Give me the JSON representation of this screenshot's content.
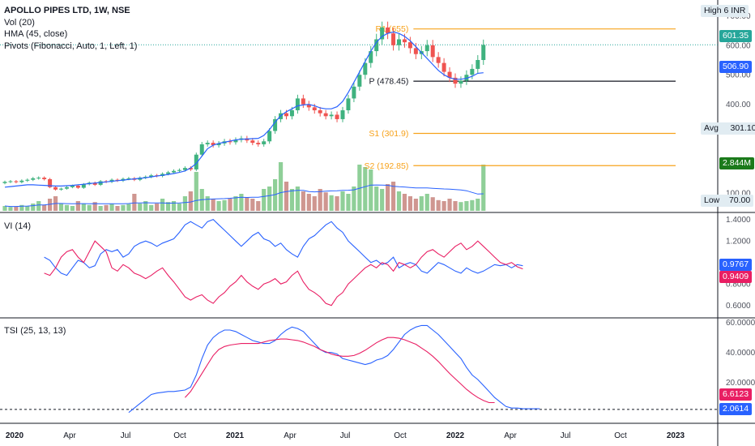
{
  "legend": {
    "symbol": "APOLLO PIPES LTD, 1W, NSE",
    "vol": "Vol (20)",
    "hma": "HMA (45, close)",
    "pivots": "Pivots (Fibonacci, Auto, 1, Left, 1)"
  },
  "colors": {
    "up": "#26a69a",
    "up_candle": "#3fb27f",
    "down": "#ef5350",
    "vol_up": "#8fcf98",
    "vol_down": "#cf9690",
    "hma": "#2962ff",
    "pivot": "#f7a21b",
    "p_line": "#131722",
    "vi_plus": "#2962ff",
    "vi_minus": "#e91e63",
    "tsi": "#2962ff",
    "tsi_signal": "#e91e63"
  },
  "chart_data": [
    {
      "type": "candlestick",
      "title": "APOLLO PIPES LTD, 1W, NSE",
      "ylim": [
        40,
        720
      ],
      "y_ticks": [
        100,
        400,
        500,
        600,
        700
      ],
      "x_ticks": [
        "2020",
        "Apr",
        "Jul",
        "Oct",
        "2021",
        "Apr",
        "Jul",
        "Oct",
        "2022",
        "Apr",
        "Jul",
        "Oct",
        "2023"
      ],
      "last_close": 601.35,
      "pivots": [
        {
          "name": "R1",
          "value": 655,
          "label": "R1 (655)"
        },
        {
          "name": "P",
          "value": 478.45,
          "label": "P (478.45)"
        },
        {
          "name": "S1",
          "value": 301.9,
          "label": "S1 (301.9)"
        },
        {
          "name": "S2",
          "value": 192.85,
          "label": "S2 (192.85)"
        }
      ],
      "price_badges": {
        "high_label": "High",
        "high_value": "6",
        "currency": "INR",
        "last": "601.35",
        "hma": "506.90",
        "avg_label": "Avg",
        "avg_value": "301.10",
        "volume": "2.844M",
        "low_label": "Low",
        "low_value": "70.00"
      },
      "closes": [
        138,
        140,
        137,
        142,
        145,
        150,
        152,
        147,
        120,
        112,
        115,
        120,
        125,
        118,
        130,
        135,
        128,
        140,
        138,
        145,
        142,
        148,
        150,
        145,
        152,
        155,
        160,
        158,
        165,
        170,
        175,
        178,
        185,
        180,
        230,
        265,
        270,
        262,
        268,
        275,
        272,
        280,
        285,
        278,
        270,
        265,
        275,
        310,
        350,
        370,
        360,
        380,
        420,
        400,
        390,
        380,
        370,
        360,
        365,
        350,
        380,
        420,
        460,
        500,
        540,
        580,
        620,
        660,
        640,
        600,
        620,
        610,
        590,
        570,
        580,
        600,
        560,
        540,
        510,
        490,
        470,
        480,
        500,
        520,
        550,
        601
      ],
      "volume_factor": [
        0.1,
        0.08,
        0.09,
        0.12,
        0.1,
        0.15,
        0.2,
        0.12,
        0.25,
        0.3,
        0.15,
        0.12,
        0.1,
        0.2,
        0.15,
        0.12,
        0.18,
        0.1,
        0.12,
        0.15,
        0.1,
        0.12,
        0.14,
        0.35,
        0.15,
        0.2,
        0.12,
        0.15,
        0.25,
        0.18,
        0.2,
        0.15,
        0.3,
        0.4,
        0.8,
        0.45,
        0.3,
        0.25,
        0.2,
        0.22,
        0.25,
        0.3,
        0.35,
        0.28,
        0.25,
        0.2,
        0.45,
        0.5,
        0.65,
        1.0,
        0.6,
        0.45,
        0.5,
        0.4,
        0.35,
        0.3,
        0.45,
        0.38,
        0.32,
        0.3,
        0.4,
        0.35,
        0.5,
        0.95,
        0.9,
        0.85,
        0.5,
        0.45,
        0.55,
        0.6,
        0.4,
        0.35,
        0.3,
        0.25,
        0.3,
        0.35,
        0.28,
        0.22,
        0.2,
        0.25,
        0.2,
        0.18,
        0.2,
        0.22,
        0.25,
        0.95
      ],
      "hma": [
        120,
        122,
        124,
        126,
        128,
        128,
        127,
        126,
        125,
        124,
        124,
        125,
        126,
        128,
        130,
        132,
        134,
        136,
        138,
        140,
        142,
        144,
        146,
        148,
        150,
        152,
        155,
        158,
        160,
        163,
        166,
        170,
        175,
        185,
        200,
        225,
        250,
        262,
        268,
        272,
        276,
        280,
        282,
        283,
        284,
        285,
        295,
        315,
        340,
        362,
        375,
        385,
        395,
        398,
        400,
        395,
        388,
        385,
        385,
        392,
        410,
        440,
        475,
        510,
        545,
        580,
        610,
        630,
        640,
        645,
        640,
        630,
        615,
        595,
        575,
        555,
        535,
        515,
        500,
        490,
        485,
        485,
        488,
        495,
        505,
        507
      ]
    },
    {
      "type": "line",
      "title": "VI (14)",
      "ylim": [
        0.5,
        1.45
      ],
      "y_ticks": [
        0.6,
        0.8,
        1.2,
        1.4
      ],
      "last_values": {
        "vi_plus": "0.9767",
        "vi_minus": "0.9409"
      },
      "series": [
        {
          "name": "VI+",
          "values": [
            1.05,
            1.02,
            0.95,
            0.9,
            0.88,
            0.95,
            1.02,
            1.0,
            0.95,
            0.97,
            1.08,
            1.12,
            1.1,
            1.12,
            1.05,
            1.08,
            1.15,
            1.18,
            1.2,
            1.18,
            1.15,
            1.18,
            1.2,
            1.22,
            1.28,
            1.35,
            1.38,
            1.35,
            1.32,
            1.38,
            1.4,
            1.35,
            1.3,
            1.25,
            1.2,
            1.15,
            1.2,
            1.25,
            1.28,
            1.22,
            1.2,
            1.15,
            1.18,
            1.12,
            1.08,
            1.05,
            1.15,
            1.22,
            1.25,
            1.3,
            1.35,
            1.38,
            1.32,
            1.28,
            1.2,
            1.15,
            1.1,
            1.05,
            1.0,
            1.02,
            0.98,
            1.0,
            1.05,
            0.95,
            0.98,
            1.0,
            0.98,
            0.92,
            0.9,
            0.95,
            1.0,
            0.98,
            0.95,
            0.92,
            0.9,
            0.95,
            0.92,
            0.9,
            0.92,
            0.95,
            0.98,
            0.97,
            0.98,
            0.95,
            0.98,
            0.97
          ]
        },
        {
          "name": "VI-",
          "values": [
            0.9,
            0.88,
            0.95,
            1.05,
            1.1,
            1.12,
            1.05,
            1.0,
            1.1,
            1.2,
            1.15,
            1.1,
            0.95,
            0.92,
            0.98,
            0.95,
            0.9,
            0.88,
            0.85,
            0.88,
            0.92,
            0.95,
            0.88,
            0.82,
            0.75,
            0.68,
            0.65,
            0.68,
            0.7,
            0.65,
            0.62,
            0.68,
            0.72,
            0.78,
            0.82,
            0.88,
            0.82,
            0.78,
            0.75,
            0.8,
            0.82,
            0.85,
            0.8,
            0.82,
            0.88,
            0.92,
            0.82,
            0.75,
            0.72,
            0.68,
            0.62,
            0.6,
            0.68,
            0.72,
            0.8,
            0.85,
            0.9,
            0.95,
            0.98,
            0.95,
            1.0,
            0.98,
            0.92,
            1.0,
            0.98,
            0.95,
            0.98,
            1.05,
            1.1,
            1.12,
            1.08,
            1.05,
            1.1,
            1.15,
            1.18,
            1.12,
            1.15,
            1.2,
            1.15,
            1.1,
            1.05,
            1.0,
            0.98,
            1.0,
            0.96,
            0.94
          ]
        }
      ]
    },
    {
      "type": "line",
      "title": "TSI (25, 13, 13)",
      "ylim": [
        -5,
        62
      ],
      "y_ticks": [
        20,
        40,
        60
      ],
      "zero_value": 2.0614,
      "last_values": {
        "tsi": "2.0614",
        "signal": "6.6123"
      },
      "series": [
        {
          "name": "TSI",
          "start_index": 22,
          "values": [
            0,
            3,
            6,
            9,
            12,
            13,
            13.5,
            14,
            14,
            14.5,
            15,
            17,
            25,
            36,
            45,
            50,
            53,
            55,
            55,
            54,
            52,
            50,
            48,
            47,
            46,
            46,
            48,
            52,
            55,
            57,
            56,
            54,
            50,
            46,
            42,
            40,
            40,
            39,
            36,
            35,
            34,
            33,
            32,
            33,
            35,
            36,
            38,
            42,
            47,
            52,
            55,
            57,
            58,
            58,
            55,
            52,
            48,
            44,
            40,
            36,
            30,
            25,
            22,
            18,
            14,
            10,
            7,
            4,
            3,
            3,
            2.5,
            2.5,
            2.5,
            2.5
          ]
        },
        {
          "name": "Signal",
          "start_index": 32,
          "values": [
            10,
            14,
            20,
            26,
            32,
            38,
            42,
            44,
            45,
            45.5,
            46,
            46,
            46,
            46,
            47,
            48,
            48.5,
            49,
            49,
            48.5,
            48,
            47,
            45.5,
            44,
            42,
            40.5,
            39,
            38,
            37.5,
            37.5,
            38,
            39.5,
            41.5,
            44,
            46.5,
            48.5,
            50,
            50,
            49.5,
            48.5,
            47,
            45.5,
            43,
            40.5,
            37.5,
            34,
            30,
            26,
            22.5,
            19,
            15.5,
            12.5,
            10,
            8,
            6.6,
            6.6
          ]
        }
      ]
    }
  ]
}
